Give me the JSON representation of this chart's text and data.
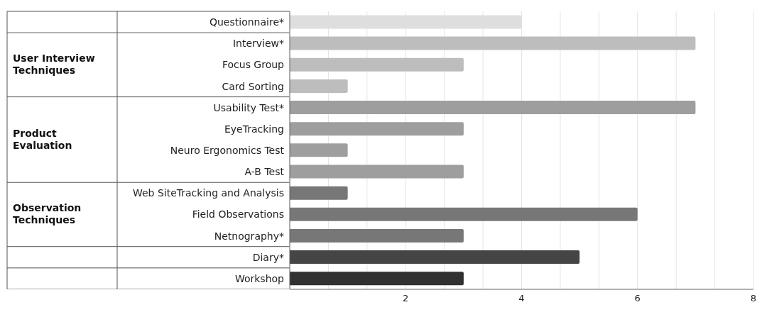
{
  "chart_data": {
    "type": "bar",
    "orientation": "horizontal",
    "categories": [
      "Questionnaire*",
      "Interview*",
      "Focus Group",
      "Card Sorting",
      "Usability Test*",
      "EyeTracking",
      "Neuro Ergonomics Test",
      "A-B Test",
      "Web SiteTracking and Analysis",
      "Field Observations",
      "Netnography*",
      "Diary*",
      "Workshop"
    ],
    "values": [
      4,
      7,
      3,
      1,
      7,
      3,
      1,
      3,
      1,
      6,
      3,
      5,
      3
    ],
    "colors": [
      "#dedede",
      "#bdbdbd",
      "#bdbdbd",
      "#bdbdbd",
      "#9e9e9e",
      "#9e9e9e",
      "#9e9e9e",
      "#9e9e9e",
      "#777777",
      "#777777",
      "#777777",
      "#454545",
      "#313131"
    ],
    "xlim": [
      0,
      8
    ],
    "xticks": [
      {
        "value": 0,
        "label": null
      },
      {
        "value": 0.667,
        "label": null
      },
      {
        "value": 1.333,
        "label": null
      },
      2,
      {
        "value": 2.667,
        "label": null
      },
      {
        "value": 3.333,
        "label": null
      },
      4,
      {
        "value": 4.667,
        "label": null
      },
      {
        "value": 5.333,
        "label": null
      },
      6,
      {
        "value": 6.667,
        "label": null
      },
      {
        "value": 7.333,
        "label": null
      },
      8
    ],
    "grid": "x",
    "annotations": [
      "User Interview Techniques",
      "Product Evaluation",
      "Observation Techniques"
    ]
  }
}
